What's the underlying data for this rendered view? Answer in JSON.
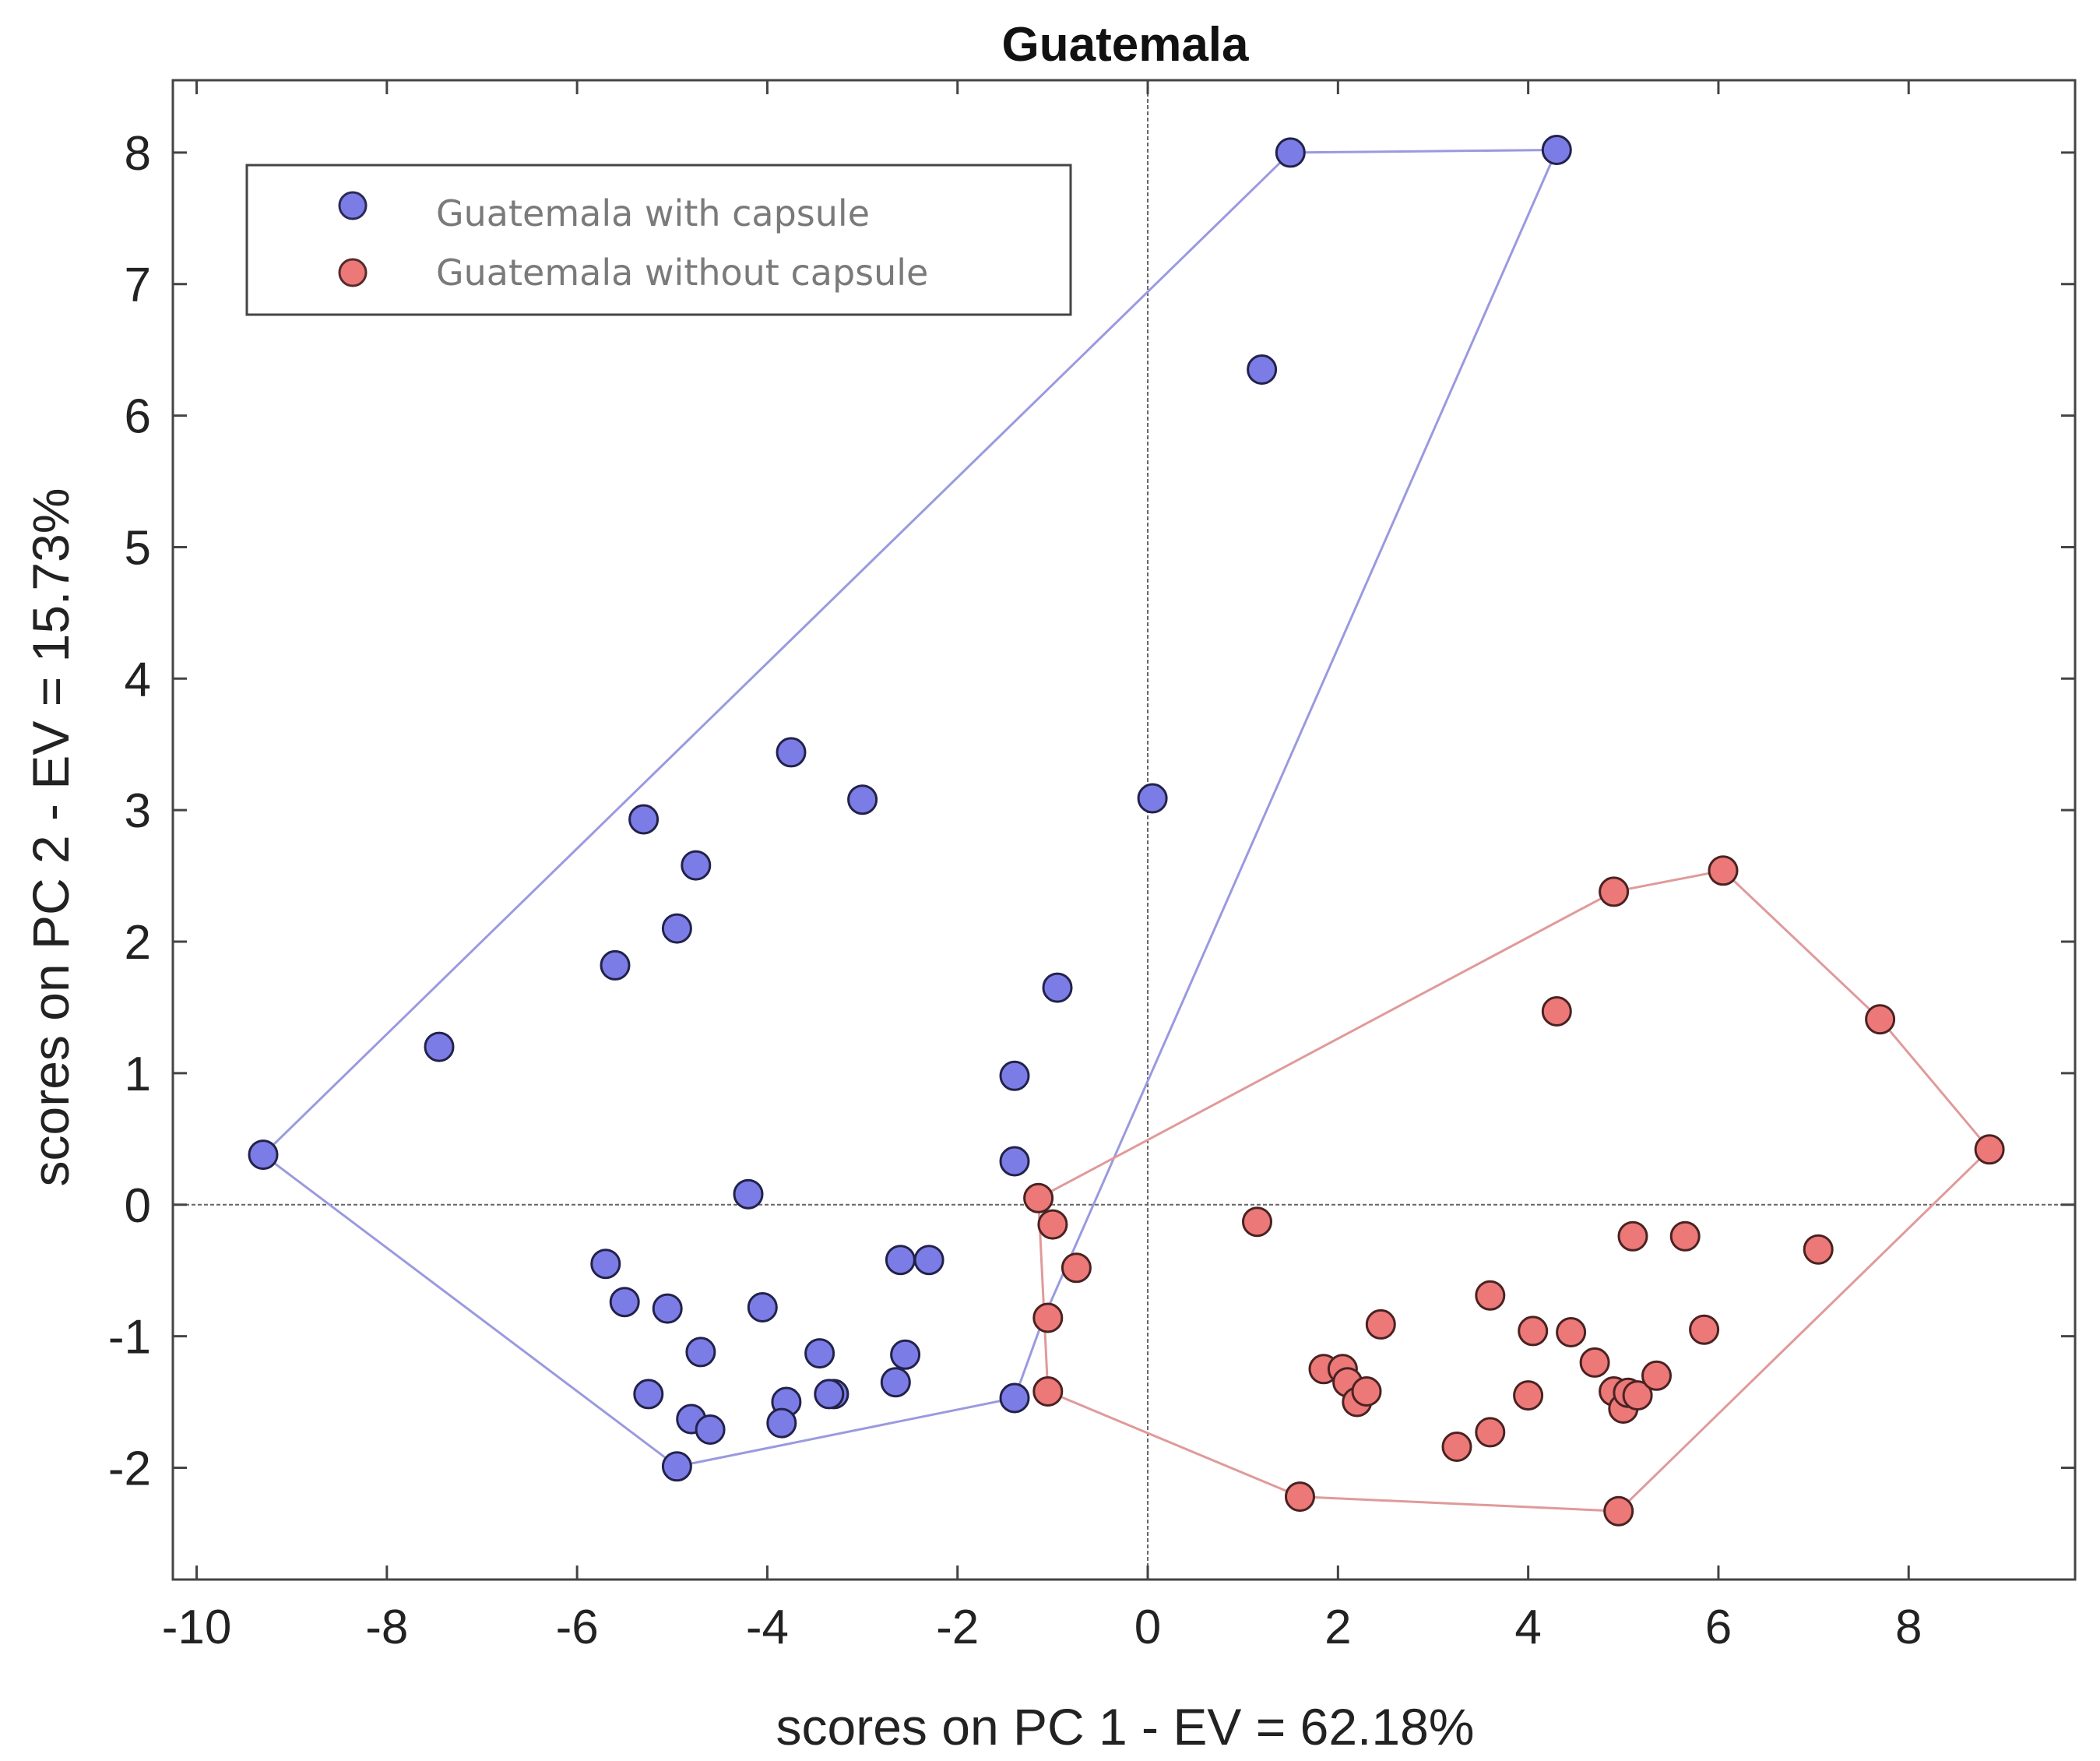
{
  "chart_data": {
    "type": "scatter",
    "title": "Guatemala",
    "xlabel": "scores on PC 1 - EV = 62.18%",
    "ylabel": "scores on PC 2 - EV = 15.73%",
    "xlim": [
      -10.25,
      9.75
    ],
    "ylim": [
      -2.85,
      8.55
    ],
    "x_ticks": [
      -10,
      -8,
      -6,
      -4,
      -2,
      0,
      2,
      4,
      6,
      8
    ],
    "y_ticks": [
      -2,
      -1,
      0,
      1,
      2,
      3,
      4,
      5,
      6,
      7,
      8
    ],
    "reference_lines": {
      "x": 0,
      "y": 0
    },
    "legend_position": "top-left",
    "series": [
      {
        "name": "Guatemala with capsule",
        "color": "#7c7ce6",
        "hull_color": "#9a9ae0",
        "points": [
          [
            -9.3,
            0.38
          ],
          [
            -7.45,
            1.2
          ],
          [
            -5.6,
            1.82
          ],
          [
            -5.3,
            2.93
          ],
          [
            -4.75,
            2.58
          ],
          [
            -4.95,
            2.1
          ],
          [
            -3.75,
            3.44
          ],
          [
            -3.0,
            3.08
          ],
          [
            0.05,
            3.09
          ],
          [
            1.5,
            8.0
          ],
          [
            4.3,
            8.02
          ],
          [
            1.2,
            6.35
          ],
          [
            -0.95,
            1.65
          ],
          [
            -1.4,
            0.98
          ],
          [
            -1.4,
            0.33
          ],
          [
            -4.2,
            0.08
          ],
          [
            -5.7,
            -0.45
          ],
          [
            -5.5,
            -0.74
          ],
          [
            -5.05,
            -0.79
          ],
          [
            -4.05,
            -0.78
          ],
          [
            -2.6,
            -0.42
          ],
          [
            -2.3,
            -0.42
          ],
          [
            -4.7,
            -1.12
          ],
          [
            -3.45,
            -1.13
          ],
          [
            -2.55,
            -1.14
          ],
          [
            -5.25,
            -1.44
          ],
          [
            -3.3,
            -1.44
          ],
          [
            -3.35,
            -1.44
          ],
          [
            -2.65,
            -1.35
          ],
          [
            -4.8,
            -1.63
          ],
          [
            -4.6,
            -1.71
          ],
          [
            -3.8,
            -1.5
          ],
          [
            -3.85,
            -1.66
          ],
          [
            -1.4,
            -1.47
          ],
          [
            -4.95,
            -1.99
          ]
        ],
        "hull": [
          [
            -9.3,
            0.38
          ],
          [
            1.5,
            8.0
          ],
          [
            4.3,
            8.02
          ],
          [
            -1.1,
            -0.87
          ],
          [
            -1.4,
            -1.47
          ],
          [
            -4.95,
            -1.99
          ],
          [
            -9.3,
            0.38
          ]
        ]
      },
      {
        "name": "Guatemala without capsule",
        "color": "#ec7878",
        "hull_color": "#e09a9a",
        "points": [
          [
            -1.15,
            0.05
          ],
          [
            -1.0,
            -0.15
          ],
          [
            -0.75,
            -0.48
          ],
          [
            -1.05,
            -0.86
          ],
          [
            -1.05,
            -1.42
          ],
          [
            1.15,
            -0.13
          ],
          [
            1.6,
            -2.22
          ],
          [
            1.85,
            -1.25
          ],
          [
            2.05,
            -1.25
          ],
          [
            2.1,
            -1.35
          ],
          [
            2.2,
            -1.5
          ],
          [
            2.3,
            -1.42
          ],
          [
            2.45,
            -0.91
          ],
          [
            3.25,
            -1.84
          ],
          [
            3.6,
            -0.69
          ],
          [
            3.6,
            -1.73
          ],
          [
            4.0,
            -1.45
          ],
          [
            4.05,
            -0.96
          ],
          [
            4.45,
            -0.97
          ],
          [
            4.7,
            -1.2
          ],
          [
            4.9,
            -1.42
          ],
          [
            5.0,
            -1.55
          ],
          [
            5.05,
            -1.43
          ],
          [
            5.15,
            -1.45
          ],
          [
            5.35,
            -1.3
          ],
          [
            4.95,
            -2.33
          ],
          [
            5.1,
            -0.24
          ],
          [
            5.65,
            -0.24
          ],
          [
            5.85,
            -0.95
          ],
          [
            7.05,
            -0.34
          ],
          [
            4.3,
            1.47
          ],
          [
            4.9,
            2.38
          ],
          [
            6.05,
            2.54
          ],
          [
            7.7,
            1.41
          ],
          [
            8.85,
            0.42
          ]
        ],
        "hull": [
          [
            -1.15,
            0.05
          ],
          [
            4.9,
            2.38
          ],
          [
            6.05,
            2.54
          ],
          [
            7.7,
            1.41
          ],
          [
            8.85,
            0.42
          ],
          [
            4.95,
            -2.33
          ],
          [
            1.6,
            -2.22
          ],
          [
            -1.05,
            -1.42
          ],
          [
            -1.15,
            0.05
          ]
        ]
      }
    ]
  }
}
